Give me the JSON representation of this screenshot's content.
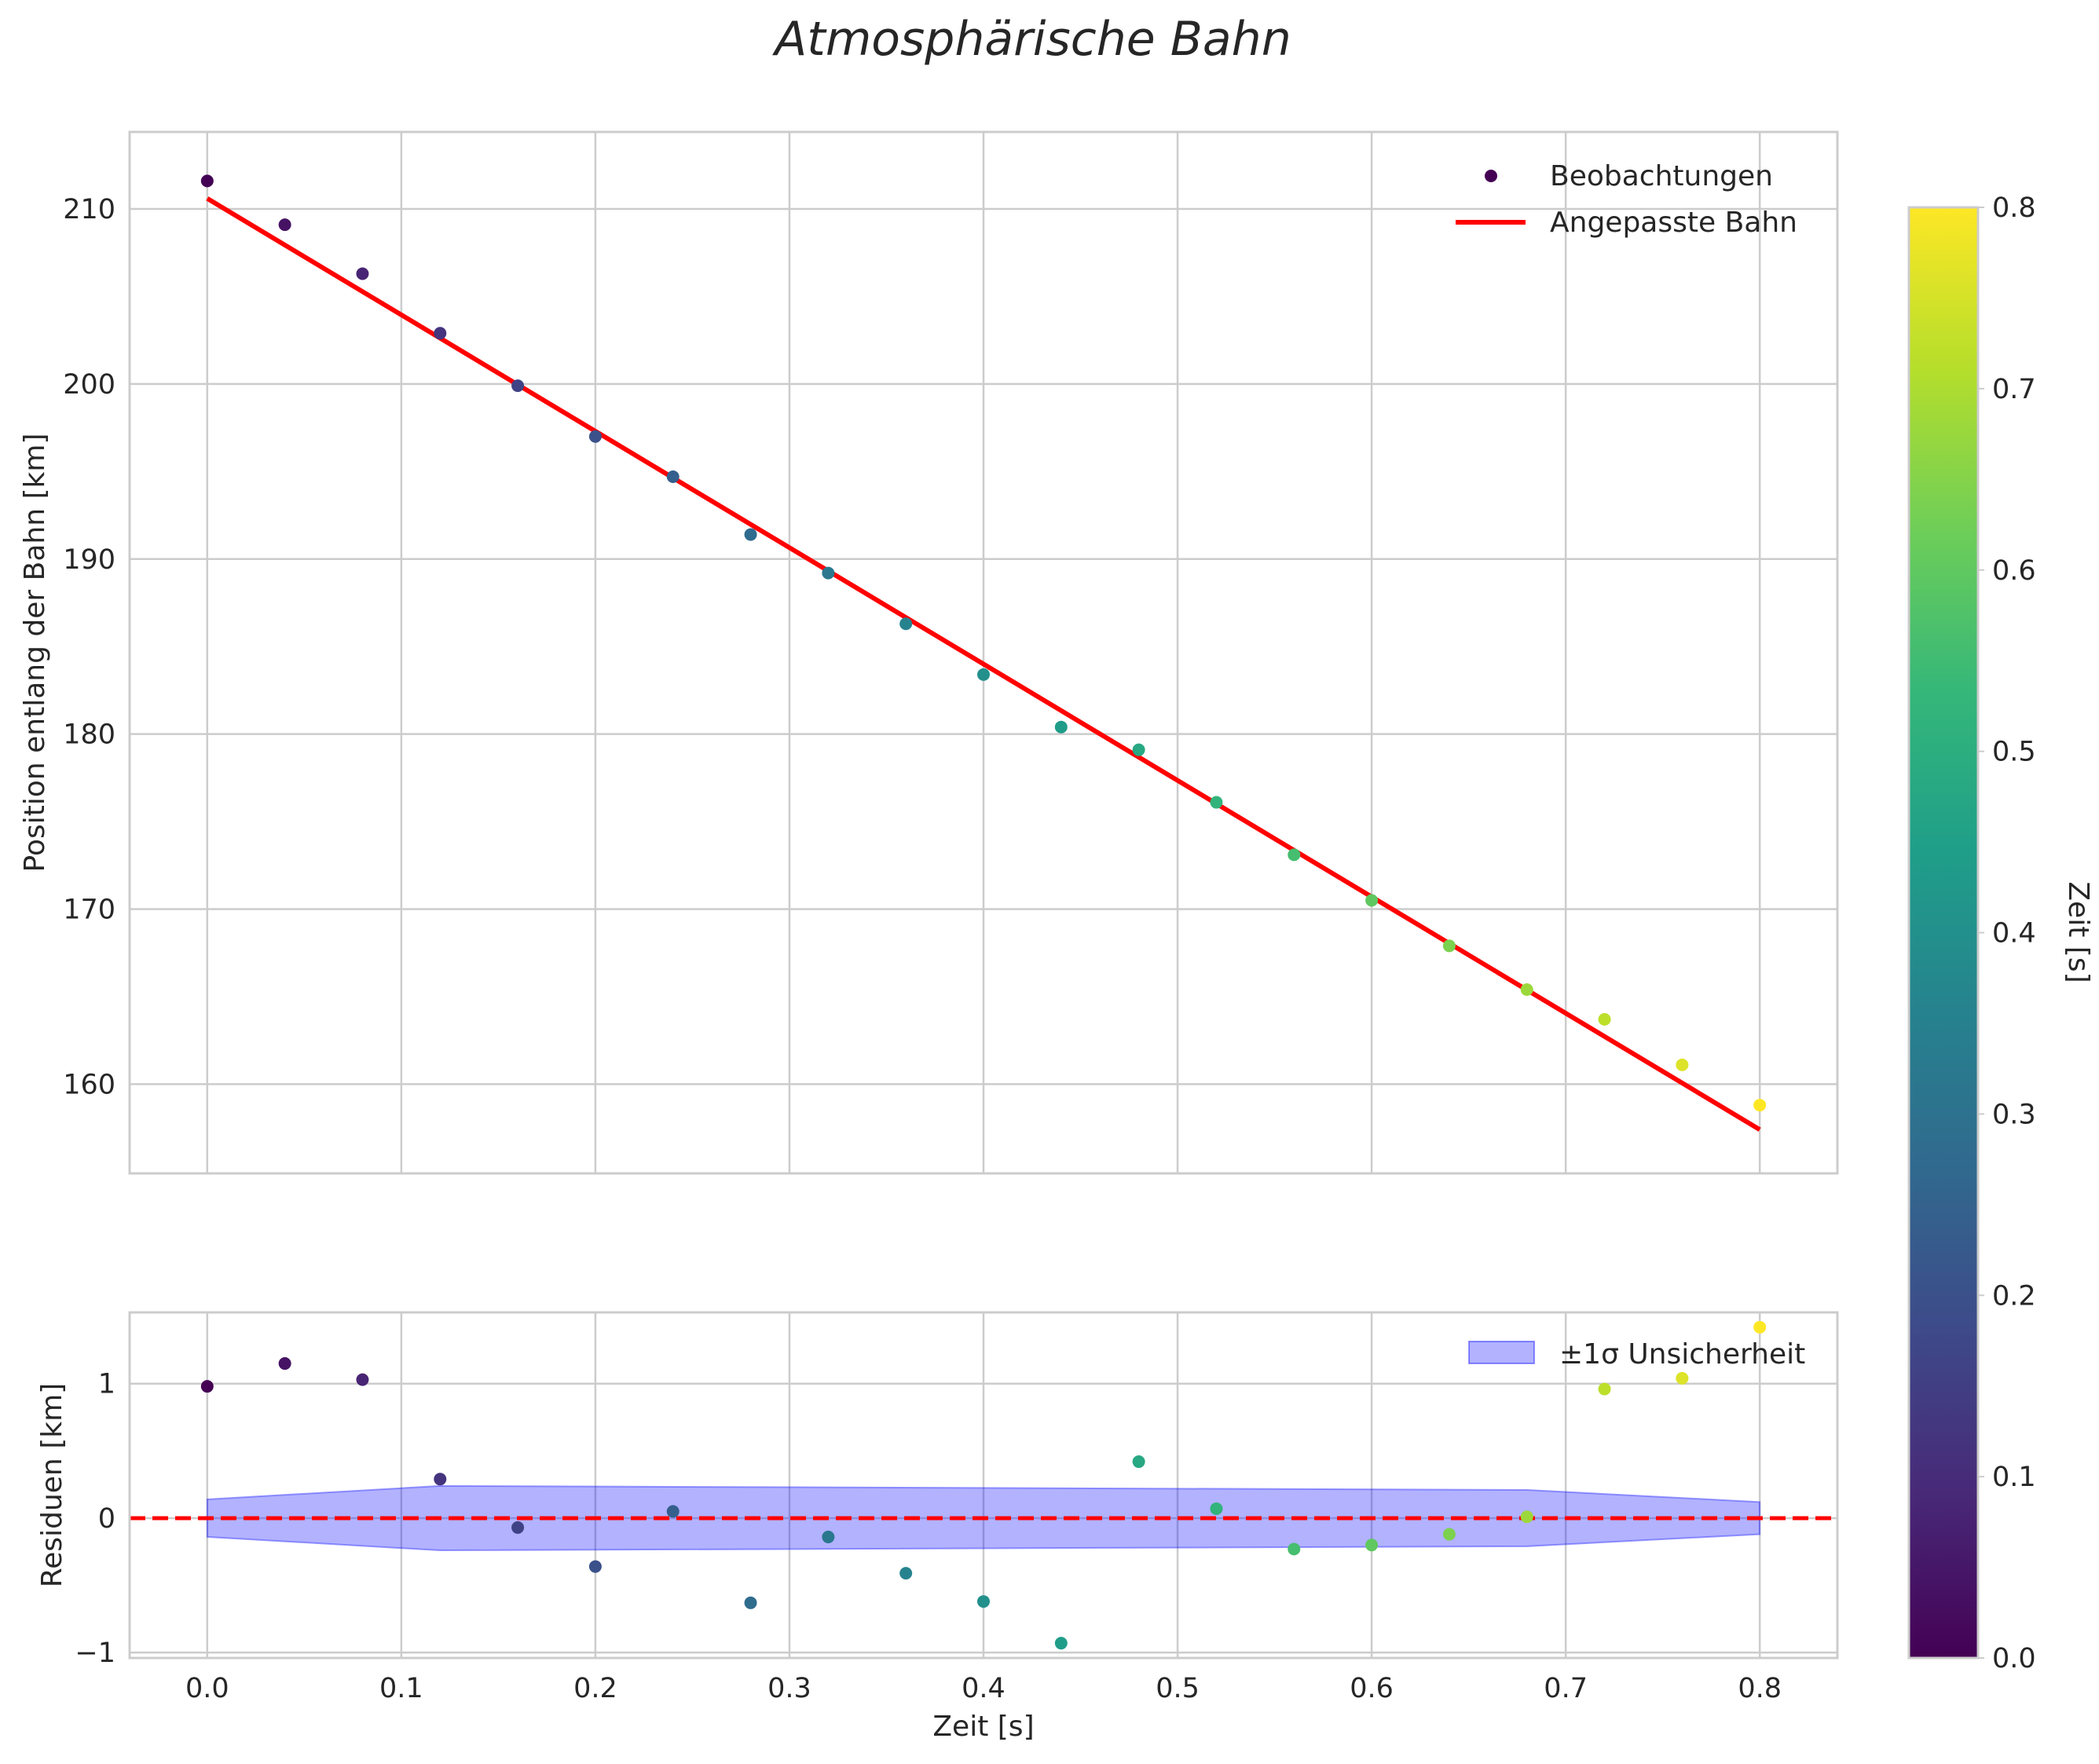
{
  "chart_data": {
    "title": "Atmosphärische Bahn",
    "colormap": [
      "#440154",
      "#482878",
      "#3e4989",
      "#31688e",
      "#26828e",
      "#1f9e89",
      "#35b779",
      "#6ece58",
      "#b5de2b",
      "#fde725"
    ],
    "main": {
      "type": "scatter",
      "xlabel": "",
      "ylabel": "Position entlang der Bahn [km]",
      "xlim": [
        -0.04,
        0.84
      ],
      "ylim": [
        154.9,
        214.4
      ],
      "xticks": [
        "0.0",
        "0.1",
        "0.2",
        "0.3",
        "0.4",
        "0.5",
        "0.6",
        "0.7",
        "0.8"
      ],
      "yticks": [
        "160",
        "170",
        "180",
        "190",
        "200",
        "210"
      ],
      "grid": true,
      "legend_position": "top-right",
      "series": [
        {
          "name": "Beobachtungen",
          "kind": "scatter",
          "x": [
            0.0,
            0.04,
            0.08,
            0.12,
            0.16,
            0.2,
            0.24,
            0.28,
            0.32,
            0.36,
            0.4,
            0.44,
            0.48,
            0.52,
            0.56,
            0.6,
            0.64,
            0.68,
            0.72,
            0.76,
            0.8
          ],
          "y": [
            211.6,
            209.1,
            206.3,
            202.9,
            199.9,
            197.0,
            194.7,
            191.4,
            189.2,
            186.3,
            183.4,
            180.4,
            179.1,
            176.1,
            173.1,
            170.5,
            167.9,
            165.4,
            163.7,
            161.1,
            158.8
          ]
        },
        {
          "name": "Angepasste Bahn",
          "kind": "line",
          "color": "#ff0000",
          "x": [
            0.0,
            0.8
          ],
          "y": [
            210.6,
            157.4
          ]
        }
      ]
    },
    "residuals": {
      "type": "scatter",
      "xlabel": "Zeit [s]",
      "ylabel": "Residuen [km]",
      "xlim": [
        -0.04,
        0.84
      ],
      "ylim": [
        -1.04,
        1.53
      ],
      "xticks": [
        "0.0",
        "0.1",
        "0.2",
        "0.3",
        "0.4",
        "0.5",
        "0.6",
        "0.7",
        "0.8"
      ],
      "yticks": [
        "−1",
        "0",
        "1"
      ],
      "grid": true,
      "legend_position": "top-right",
      "x": [
        0.0,
        0.04,
        0.08,
        0.12,
        0.16,
        0.2,
        0.24,
        0.28,
        0.32,
        0.36,
        0.4,
        0.44,
        0.48,
        0.52,
        0.56,
        0.6,
        0.64,
        0.68,
        0.72,
        0.76,
        0.8
      ],
      "y": [
        0.98,
        1.15,
        1.03,
        0.29,
        -0.07,
        -0.36,
        0.05,
        -0.63,
        -0.14,
        -0.41,
        -0.62,
        -0.93,
        0.42,
        0.07,
        -0.23,
        -0.2,
        -0.12,
        0.01,
        0.96,
        1.04,
        1.42
      ],
      "zero_line": {
        "value": 0,
        "color": "#ff0000",
        "style": "dashed"
      },
      "band": {
        "name": "±1σ Unsicherheit",
        "color": "#0000ff",
        "x": [
          0.0,
          0.12,
          0.68,
          0.8
        ],
        "upper": [
          0.14,
          0.24,
          0.21,
          0.12
        ],
        "lower": [
          -0.14,
          -0.24,
          -0.21,
          -0.12
        ]
      }
    },
    "colorbar": {
      "label": "Zeit [s]",
      "range": [
        0.0,
        0.8
      ],
      "ticks": [
        "0.0",
        "0.1",
        "0.2",
        "0.3",
        "0.4",
        "0.5",
        "0.6",
        "0.7",
        "0.8"
      ]
    }
  }
}
